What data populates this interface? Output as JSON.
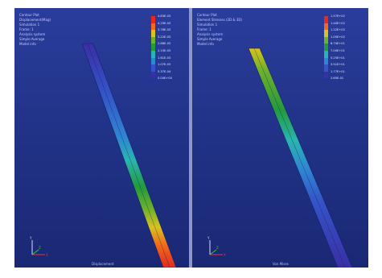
{
  "panels": [
    {
      "info": [
        "Contour Plot",
        "Displacement(Mag)",
        "Simulation 1",
        "Frame: 1",
        "Analysis system",
        "Simple Average",
        "Model info"
      ],
      "legend": {
        "colors": [
          "#e12b1f",
          "#f06a1c",
          "#d8c21e",
          "#6fb12b",
          "#239a3c",
          "#2ab5b0",
          "#2f86d2",
          "#3454c8",
          "#3a2fa5"
        ],
        "values": [
          "4.83E-03",
          "4.29E-03",
          "3.76E-03",
          "3.22E-03",
          "2.68E-03",
          "2.15E-03",
          "1.61E-03",
          "1.07E-03",
          "5.37E-04",
          "0.00E+00"
        ]
      },
      "footer": "Displacement"
    },
    {
      "info": [
        "Contour Plot",
        "Element Stresses (2D & 3D)",
        "Simulation 1",
        "Frame: 1",
        "Analysis system",
        "Simple Average",
        "Model info"
      ],
      "legend": {
        "colors": [
          "#e12b1f",
          "#f06a1c",
          "#d8c21e",
          "#6fb12b",
          "#239a3c",
          "#2ab5b0",
          "#2f86d2",
          "#3454c8",
          "#3a2fa5"
        ],
        "values": [
          "1.57E+02",
          "1.40E+02",
          "1.22E+02",
          "1.05E+02",
          "8.74E+01",
          "7.00E+01",
          "5.25E+01",
          "3.51E+01",
          "1.77E+01",
          "2.65E-01"
        ]
      },
      "footer": "Von Mises"
    }
  ],
  "axes": {
    "x": "X",
    "y": "Y",
    "z": "Z"
  },
  "accent": {
    "background": "#23358c",
    "divider": "#8e97c9"
  }
}
